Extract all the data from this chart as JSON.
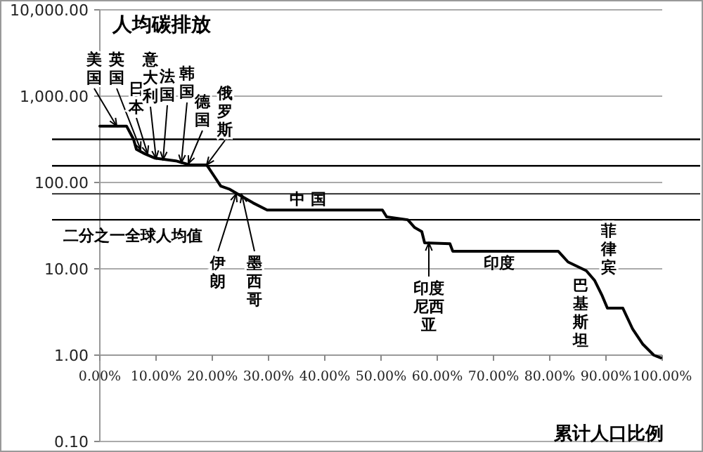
{
  "chart_data": {
    "type": "line",
    "title": "人均碳排放",
    "xlabel": "累计人口比例",
    "log": true,
    "grid": "y",
    "marker": "none",
    "line_style": "solid",
    "x": [
      0,
      4.75,
      6,
      6.5,
      8,
      9.75,
      13.5,
      16,
      19,
      20.5,
      21.5,
      23,
      24.75,
      27.25,
      29.75,
      50.25,
      51,
      54.75,
      56,
      57.25,
      57.75,
      62.25,
      62.75,
      81.5,
      83.25,
      86.5,
      88,
      89.25,
      90.25,
      93,
      94.75,
      96.5,
      98.5,
      99.75
    ],
    "series": [
      {
        "color": "#000000",
        "values": [
          450,
          450,
          316,
          242,
          215,
          192,
          178,
          160,
          160,
          114,
          91,
          84,
          72,
          58,
          48,
          48,
          40,
          37,
          30,
          27,
          20,
          19.5,
          16,
          16,
          12,
          9.5,
          7.3,
          5,
          3.5,
          3.5,
          2,
          1.35,
          1,
          0.93
        ]
      }
    ],
    "xlim": [
      0,
      100
    ],
    "xticks": [
      {
        "value": 0,
        "label": "0.00%"
      },
      {
        "value": 10,
        "label": "10.00%"
      },
      {
        "value": 20,
        "label": "20.00%"
      },
      {
        "value": 30,
        "label": "30.00%"
      },
      {
        "value": 40,
        "label": "40.00%"
      },
      {
        "value": 50,
        "label": "50.00%"
      },
      {
        "value": 60,
        "label": "60.00%"
      },
      {
        "value": 70,
        "label": "70.00%"
      },
      {
        "value": 80,
        "label": "80.00%"
      },
      {
        "value": 90,
        "label": "90.00%"
      },
      {
        "value": 100,
        "label": "100.00%"
      }
    ],
    "ylim": [
      0.1,
      10000
    ],
    "yticks": [
      {
        "value": 0.1,
        "label": "0.10"
      },
      {
        "value": 1,
        "label": "1.00"
      },
      {
        "value": 10,
        "label": "10.00"
      },
      {
        "value": 100,
        "label": "100.00"
      },
      {
        "value": 1000,
        "label": "1,000.00"
      },
      {
        "value": 10000,
        "label": "10,000.00"
      }
    ],
    "ref_lines": [
      {
        "axis": "y",
        "value": 316,
        "label": null,
        "color": "#000000"
      },
      {
        "axis": "y",
        "value": 156,
        "label": null,
        "color": "#000000"
      },
      {
        "axis": "y",
        "value": 74,
        "label": null,
        "color": "#444444"
      },
      {
        "axis": "y",
        "value": 37,
        "label": "二分之一全球人均值",
        "color": "#000000"
      }
    ],
    "annotations": [
      {
        "text": "美国",
        "x": 3,
        "y": 450
      },
      {
        "text": "英国",
        "x": 7.25,
        "y": 240
      },
      {
        "text": "日本",
        "x": 8.5,
        "y": 215
      },
      {
        "text": "意大利",
        "x": 10,
        "y": 190
      },
      {
        "text": "法国",
        "x": 11.25,
        "y": 185
      },
      {
        "text": "韩国",
        "x": 14.5,
        "y": 170
      },
      {
        "text": "德国",
        "x": 15.75,
        "y": 165
      },
      {
        "text": "俄罗斯",
        "x": 19,
        "y": 160
      },
      {
        "text": "伊朗",
        "x": 24.25,
        "y": 74
      },
      {
        "text": "墨西哥",
        "x": 25.25,
        "y": 72
      },
      {
        "text": "中 国",
        "x": 37,
        "y": 48
      },
      {
        "text": "印度尼西亚",
        "x": 58.5,
        "y": 20
      },
      {
        "text": "印度",
        "x": 71,
        "y": 16
      },
      {
        "text": "菲律宾",
        "x": 81.5,
        "y": 16
      },
      {
        "text": "巴基斯坦",
        "x": 84.75,
        "y": 12
      }
    ]
  }
}
